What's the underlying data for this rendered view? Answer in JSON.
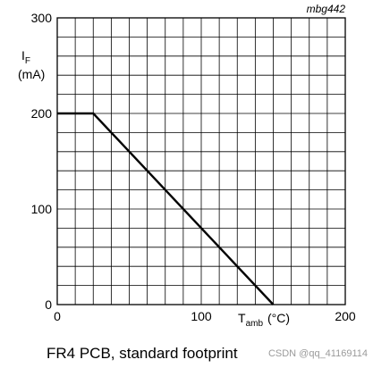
{
  "chart_data": {
    "type": "line",
    "code_label": "mbg442",
    "ylabel_symbol": "I",
    "ylabel_sub": "F",
    "ylabel_unit": "(mA)",
    "xlabel_symbol": "T",
    "xlabel_sub": "amb",
    "xlabel_unit": "(°C)",
    "xlim": [
      0,
      200
    ],
    "ylim": [
      0,
      300
    ],
    "x_ticks": [
      "0",
      "100",
      "200"
    ],
    "y_ticks": [
      "0",
      "100",
      "200",
      "300"
    ],
    "grid": true,
    "series": [
      {
        "x": [
          0,
          25,
          150
        ],
        "y": [
          200,
          200,
          0
        ],
        "color": "#000000"
      }
    ]
  },
  "caption": "FR4 PCB, standard footprint",
  "watermark": "CSDN @qq_41169114"
}
